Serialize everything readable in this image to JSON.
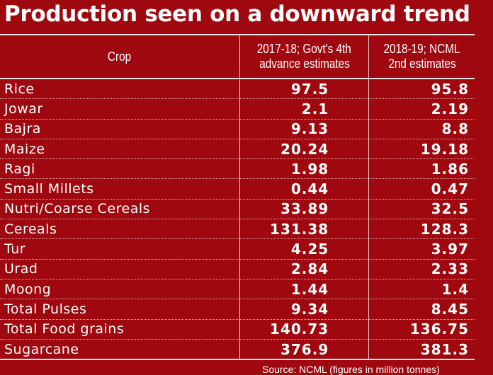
{
  "title": "Production seen on a downward trend",
  "headers": {
    "crop": "Crop",
    "col1_line1": "2017-18; Govt's 4th",
    "col1_line2": "advance estimates",
    "col2_line1": "2018-19; NCML",
    "col2_line2": "2nd estimates"
  },
  "rows": [
    {
      "crop": "Rice",
      "v1": "97.5",
      "v2": "95.8"
    },
    {
      "crop": "Jowar",
      "v1": "2.1",
      "v2": "2.19"
    },
    {
      "crop": "Bajra",
      "v1": "9.13",
      "v2": "8.8"
    },
    {
      "crop": "Maize",
      "v1": "20.24",
      "v2": "19.18"
    },
    {
      "crop": "Ragi",
      "v1": "1.98",
      "v2": "1.86"
    },
    {
      "crop": "Small Millets",
      "v1": "0.44",
      "v2": "0.47"
    },
    {
      "crop": "Nutri/Coarse Cereals",
      "v1": "33.89",
      "v2": "32.5"
    },
    {
      "crop": "Cereals",
      "v1": "131.38",
      "v2": "128.3"
    },
    {
      "crop": "Tur",
      "v1": "4.25",
      "v2": "3.97"
    },
    {
      "crop": "Urad",
      "v1": "2.84",
      "v2": "2.33"
    },
    {
      "crop": "Moong",
      "v1": "1.44",
      "v2": "1.4"
    },
    {
      "crop": "Total Pulses",
      "v1": "9.34",
      "v2": "8.45"
    },
    {
      "crop": "Total Food grains",
      "v1": "140.73",
      "v2": "136.75"
    },
    {
      "crop": "Sugarcane",
      "v1": "376.9",
      "v2": "381.3"
    }
  ],
  "source": "Source: NCML (figures in million tonnes)"
}
